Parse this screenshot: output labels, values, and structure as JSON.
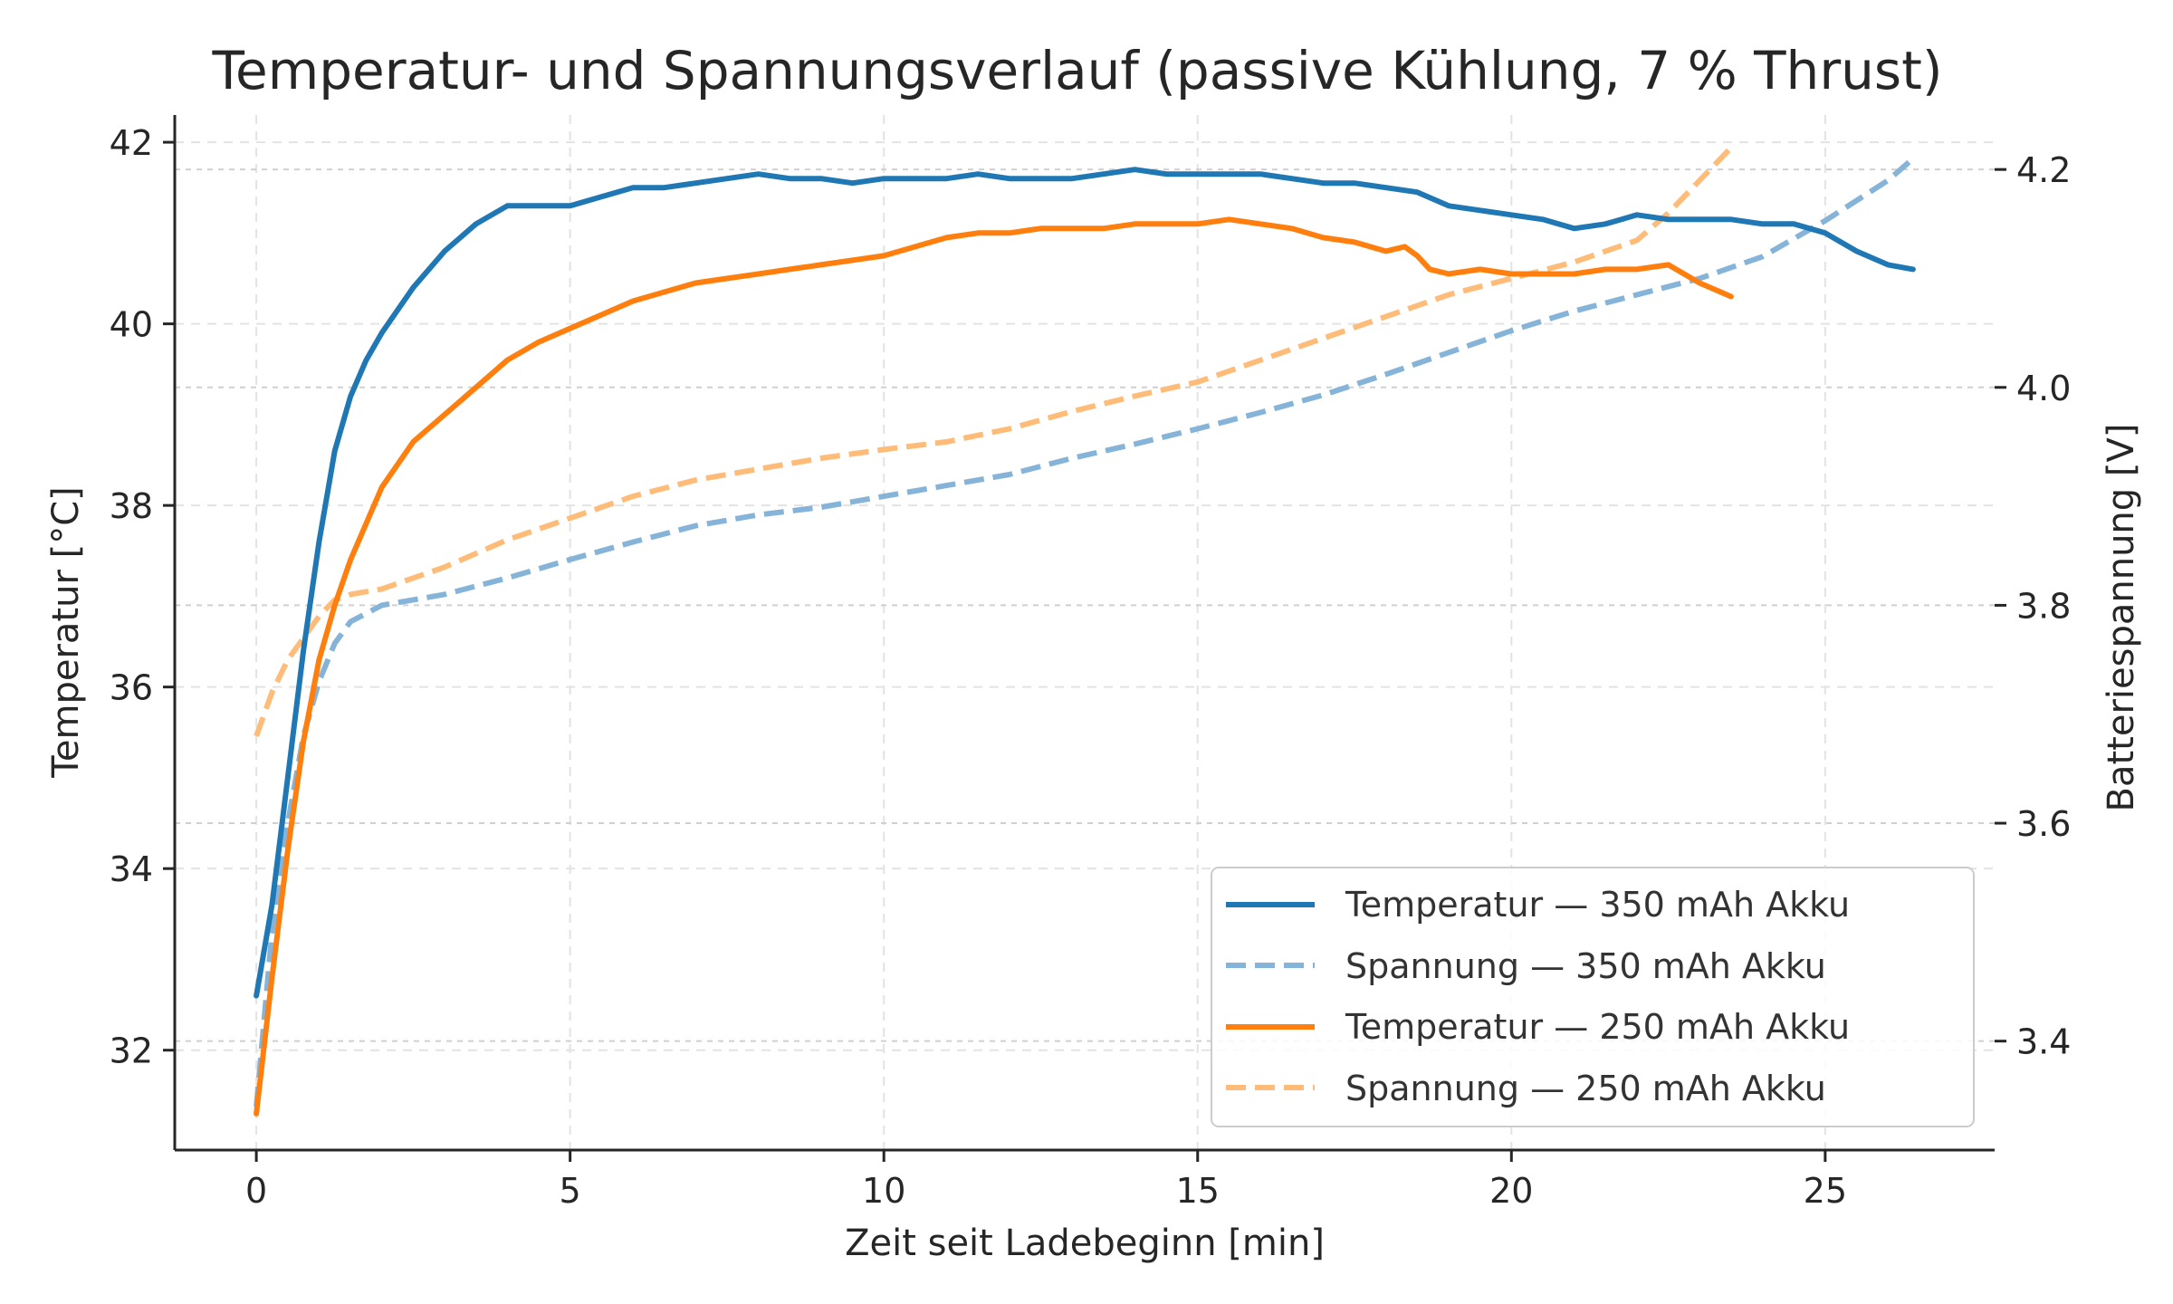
{
  "chart_data": {
    "type": "line",
    "title": "Temperatur- und Spannungsverlauf (passive Kühlung, 7 % Thrust)",
    "xlabel": "Zeit seit Ladebeginn [min]",
    "ylabel_left": "Temperatur [°C]",
    "ylabel_right": "Batteriespannung [V]",
    "xlim": [
      -1.3,
      27.7
    ],
    "ylim_left": [
      30.9,
      42.3
    ],
    "ylim_right": [
      3.3,
      4.25
    ],
    "xticks": [
      "0",
      "5",
      "10",
      "15",
      "20",
      "25"
    ],
    "yticks_left": [
      "32",
      "34",
      "36",
      "38",
      "40",
      "42"
    ],
    "yticks_right": [
      "3.4",
      "3.6",
      "3.8",
      "4.0",
      "4.2"
    ],
    "grid": true,
    "legend_position": "lower-right",
    "series": [
      {
        "name": "Temperatur — 350 mAh Akku",
        "axis": "left",
        "style": "solid",
        "color": "#1f77b4",
        "x": [
          0,
          0.25,
          0.5,
          0.75,
          1.0,
          1.25,
          1.5,
          1.75,
          2.0,
          2.5,
          3.0,
          3.5,
          4.0,
          4.5,
          5.0,
          5.5,
          6.0,
          6.5,
          7.0,
          7.5,
          8.0,
          8.5,
          9.0,
          9.5,
          10.0,
          10.5,
          11.0,
          11.5,
          12.0,
          12.5,
          13.0,
          13.5,
          14.0,
          14.5,
          15.0,
          15.5,
          16.0,
          16.5,
          17.0,
          17.5,
          18.0,
          18.5,
          19.0,
          19.5,
          20.0,
          20.5,
          21.0,
          21.5,
          22.0,
          22.5,
          23.0,
          23.5,
          24.0,
          24.5,
          25.0,
          25.5,
          26.0,
          26.4
        ],
        "y": [
          32.6,
          33.6,
          35.0,
          36.4,
          37.6,
          38.6,
          39.2,
          39.6,
          39.9,
          40.4,
          40.8,
          41.1,
          41.3,
          41.3,
          41.3,
          41.4,
          41.5,
          41.5,
          41.55,
          41.6,
          41.65,
          41.6,
          41.6,
          41.55,
          41.6,
          41.6,
          41.6,
          41.65,
          41.6,
          41.6,
          41.6,
          41.65,
          41.7,
          41.65,
          41.65,
          41.65,
          41.65,
          41.6,
          41.55,
          41.55,
          41.5,
          41.45,
          41.3,
          41.25,
          41.2,
          41.15,
          41.05,
          41.1,
          41.2,
          41.15,
          41.15,
          41.15,
          41.1,
          41.1,
          41.0,
          40.8,
          40.65,
          40.6
        ]
      },
      {
        "name": "Spannung — 350 mAh Akku",
        "axis": "right",
        "style": "dashed",
        "color": "#86b4d9",
        "x": [
          0,
          0.25,
          0.5,
          0.75,
          1.0,
          1.25,
          1.5,
          2.0,
          2.5,
          3.0,
          4.0,
          5.0,
          6.0,
          7.0,
          8.0,
          9.0,
          10.0,
          11.0,
          12.0,
          13.0,
          14.0,
          15.0,
          16.0,
          17.0,
          18.0,
          19.0,
          20.0,
          21.0,
          22.0,
          23.0,
          24.0,
          25.0,
          26.0,
          26.4
        ],
        "y": [
          3.34,
          3.5,
          3.6,
          3.68,
          3.73,
          3.765,
          3.785,
          3.8,
          3.805,
          3.81,
          3.825,
          3.842,
          3.858,
          3.873,
          3.883,
          3.89,
          3.9,
          3.91,
          3.92,
          3.935,
          3.948,
          3.962,
          3.977,
          3.993,
          4.012,
          4.032,
          4.052,
          4.07,
          4.085,
          4.1,
          4.12,
          4.153,
          4.19,
          4.21
        ]
      },
      {
        "name": "Temperatur — 250 mAh Akku",
        "axis": "left",
        "style": "solid",
        "color": "#ff7f0e",
        "x": [
          0,
          0.25,
          0.5,
          0.75,
          1.0,
          1.25,
          1.5,
          2.0,
          2.5,
          3.0,
          3.5,
          4.0,
          4.5,
          5.0,
          5.5,
          6.0,
          6.5,
          7.0,
          7.5,
          8.0,
          8.5,
          9.0,
          9.5,
          10.0,
          10.5,
          11.0,
          11.5,
          12.0,
          12.5,
          13.0,
          13.5,
          14.0,
          14.5,
          15.0,
          15.5,
          16.0,
          16.5,
          17.0,
          17.5,
          18.0,
          18.3,
          18.5,
          18.7,
          19.0,
          19.5,
          20.0,
          20.5,
          21.0,
          21.5,
          22.0,
          22.5,
          23.0,
          23.5
        ],
        "y": [
          31.3,
          32.8,
          34.2,
          35.4,
          36.3,
          36.9,
          37.4,
          38.2,
          38.7,
          39.0,
          39.3,
          39.6,
          39.8,
          39.95,
          40.1,
          40.25,
          40.35,
          40.45,
          40.5,
          40.55,
          40.6,
          40.65,
          40.7,
          40.75,
          40.85,
          40.95,
          41.0,
          41.0,
          41.05,
          41.05,
          41.05,
          41.1,
          41.1,
          41.1,
          41.15,
          41.1,
          41.05,
          40.95,
          40.9,
          40.8,
          40.85,
          40.75,
          40.6,
          40.55,
          40.6,
          40.55,
          40.55,
          40.55,
          40.6,
          40.6,
          40.65,
          40.45,
          40.3
        ]
      },
      {
        "name": "Spannung — 250 mAh Akku",
        "axis": "right",
        "style": "dashed",
        "color": "#ffbb78",
        "x": [
          0,
          0.25,
          0.5,
          0.75,
          1.0,
          1.25,
          1.5,
          2.0,
          2.5,
          3.0,
          4.0,
          5.0,
          6.0,
          7.0,
          8.0,
          9.0,
          10.0,
          11.0,
          12.0,
          13.0,
          14.0,
          15.0,
          16.0,
          17.0,
          18.0,
          19.0,
          20.0,
          21.0,
          22.0,
          22.5,
          23.0,
          23.5
        ],
        "y": [
          3.68,
          3.72,
          3.75,
          3.77,
          3.79,
          3.805,
          3.81,
          3.815,
          3.825,
          3.835,
          3.86,
          3.88,
          3.9,
          3.915,
          3.925,
          3.935,
          3.943,
          3.95,
          3.962,
          3.978,
          3.992,
          4.005,
          4.025,
          4.045,
          4.065,
          4.085,
          4.1,
          4.115,
          4.135,
          4.16,
          4.19,
          4.22
        ]
      }
    ]
  }
}
